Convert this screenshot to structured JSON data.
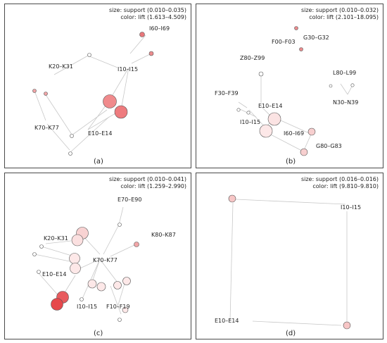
{
  "panels": [
    {
      "id": "a",
      "caption": "(a)",
      "legend_size": "size: support (0.010–0.035)",
      "legend_color": "color: lift (1.613–4.509)",
      "labels": [
        "I60–I69",
        "K20–K31",
        "I10–I15",
        "K70–K77",
        "E10–E14"
      ]
    },
    {
      "id": "b",
      "caption": "(b)",
      "legend_size": "size: support (0.010–0.032)",
      "legend_color": "color: lift (2.101–18.095)",
      "labels": [
        "F00–F03",
        "G30–G32",
        "Z80–Z99",
        "L80–L99",
        "F30–F39",
        "N30–N39",
        "E10–E14",
        "I10–I15",
        "I60–I69",
        "G80–G83"
      ]
    },
    {
      "id": "c",
      "caption": "(c)",
      "legend_size": "size: support (0.010–0.041)",
      "legend_color": "color: lift (1.259–2.990)",
      "labels": [
        "E70–E90",
        "K20–K31",
        "K80–K87",
        "K70–K77",
        "E10–E14",
        "I10–I15",
        "F10–F19"
      ]
    },
    {
      "id": "d",
      "caption": "(d)",
      "legend_size": "size: support (0.016–0.016)",
      "legend_color": "color: lift (9.810–9.810)",
      "labels": [
        "I10–I15",
        "E10–E14"
      ]
    }
  ]
}
